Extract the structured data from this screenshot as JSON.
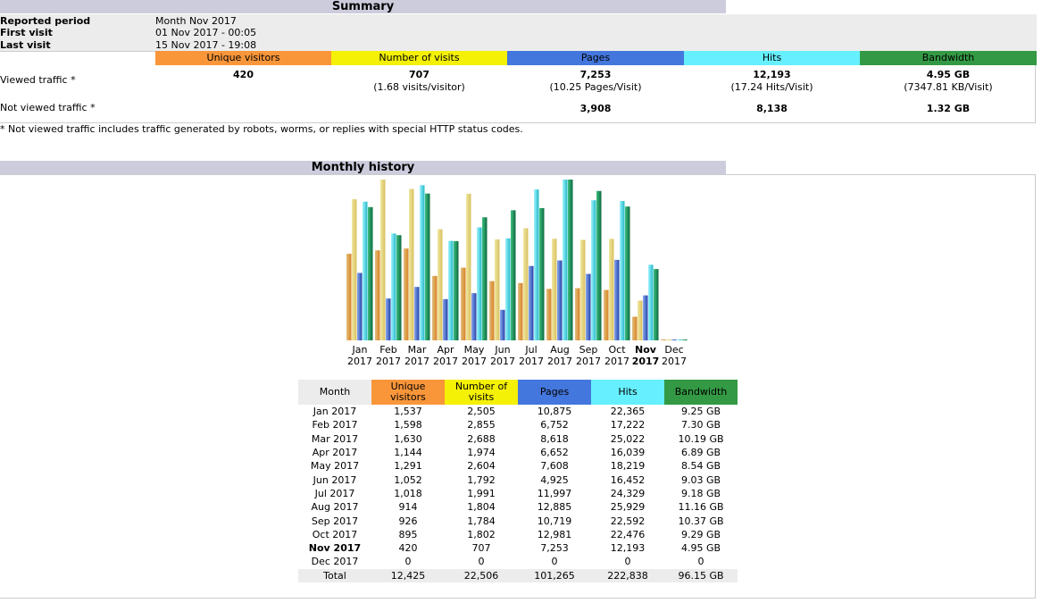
{
  "colors": {
    "visitors": "#f9963a",
    "visits": "#f4f006",
    "pages": "#4477dd",
    "hits": "#66f0ff",
    "bandwidth": "#339944",
    "header": "#ccccdd"
  },
  "summary": {
    "title": "Summary",
    "reported_label": "Reported period",
    "reported_value": "Month Nov 2017",
    "first_label": "First visit",
    "first_value": "01 Nov 2017 - 00:05",
    "last_label": "Last visit",
    "last_value": "15 Nov 2017 - 19:08",
    "columns": [
      "Unique visitors",
      "Number of visits",
      "Pages",
      "Hits",
      "Bandwidth"
    ],
    "viewed_label": "Viewed traffic *",
    "viewed": [
      "420",
      "707",
      "7,253",
      "12,193",
      "4.95 GB"
    ],
    "viewed_sub": [
      "",
      "(1.68 visits/visitor)",
      "(10.25 Pages/Visit)",
      "(17.24 Hits/Visit)",
      "(7347.81 KB/Visit)"
    ],
    "notviewed_label": "Not viewed traffic *",
    "notviewed": [
      "",
      "",
      "3,908",
      "8,138",
      "1.32 GB"
    ],
    "note": "* Not viewed traffic includes traffic generated by robots, worms, or replies with special HTTP status codes."
  },
  "history": {
    "title": "Monthly history",
    "headers": [
      "Month",
      "Unique visitors",
      "Number of visits",
      "Pages",
      "Hits",
      "Bandwidth"
    ],
    "rows": [
      [
        "Jan 2017",
        "1,537",
        "2,505",
        "10,875",
        "22,365",
        "9.25 GB"
      ],
      [
        "Feb 2017",
        "1,598",
        "2,855",
        "6,752",
        "17,222",
        "7.30 GB"
      ],
      [
        "Mar 2017",
        "1,630",
        "2,688",
        "8,618",
        "25,022",
        "10.19 GB"
      ],
      [
        "Apr 2017",
        "1,144",
        "1,974",
        "6,652",
        "16,039",
        "6.89 GB"
      ],
      [
        "May 2017",
        "1,291",
        "2,604",
        "7,608",
        "18,219",
        "8.54 GB"
      ],
      [
        "Jun 2017",
        "1,052",
        "1,792",
        "4,925",
        "16,452",
        "9.03 GB"
      ],
      [
        "Jul 2017",
        "1,018",
        "1,991",
        "11,997",
        "24,329",
        "9.18 GB"
      ],
      [
        "Aug 2017",
        "914",
        "1,804",
        "12,885",
        "25,929",
        "11.16 GB"
      ],
      [
        "Sep 2017",
        "926",
        "1,784",
        "10,719",
        "22,592",
        "10.37 GB"
      ],
      [
        "Oct 2017",
        "895",
        "1,802",
        "12,981",
        "22,476",
        "9.29 GB"
      ],
      [
        "Nov 2017",
        "420",
        "707",
        "7,253",
        "12,193",
        "4.95 GB"
      ],
      [
        "Dec 2017",
        "0",
        "0",
        "0",
        "0",
        "0"
      ]
    ],
    "total": [
      "Total",
      "12,425",
      "22,506",
      "101,265",
      "222,838",
      "96.15 GB"
    ]
  },
  "chart_data": {
    "type": "bar",
    "categories": [
      "Jan 2017",
      "Feb 2017",
      "Mar 2017",
      "Apr 2017",
      "May 2017",
      "Jun 2017",
      "Jul 2017",
      "Aug 2017",
      "Sep 2017",
      "Oct 2017",
      "Nov 2017",
      "Dec 2017"
    ],
    "month_labels": [
      "Jan",
      "Feb",
      "Mar",
      "Apr",
      "May",
      "Jun",
      "Jul",
      "Aug",
      "Sep",
      "Oct",
      "Nov",
      "Dec"
    ],
    "year_label": "2017",
    "current_month": "Nov",
    "series": [
      {
        "name": "Unique visitors",
        "values": [
          1537,
          1598,
          1630,
          1144,
          1291,
          1052,
          1018,
          914,
          926,
          895,
          420,
          0
        ]
      },
      {
        "name": "Number of visits",
        "values": [
          2505,
          2855,
          2688,
          1974,
          2604,
          1792,
          1991,
          1804,
          1784,
          1802,
          707,
          0
        ]
      },
      {
        "name": "Pages",
        "values": [
          10875,
          6752,
          8618,
          6652,
          7608,
          4925,
          11997,
          12885,
          10719,
          12981,
          7253,
          0
        ]
      },
      {
        "name": "Hits",
        "values": [
          22365,
          17222,
          25022,
          16039,
          18219,
          16452,
          24329,
          25929,
          22592,
          22476,
          12193,
          0
        ]
      },
      {
        "name": "Bandwidth",
        "values": [
          9.25,
          7.3,
          10.19,
          6.89,
          8.54,
          9.03,
          9.18,
          11.16,
          10.37,
          9.29,
          4.95,
          0
        ]
      }
    ]
  }
}
